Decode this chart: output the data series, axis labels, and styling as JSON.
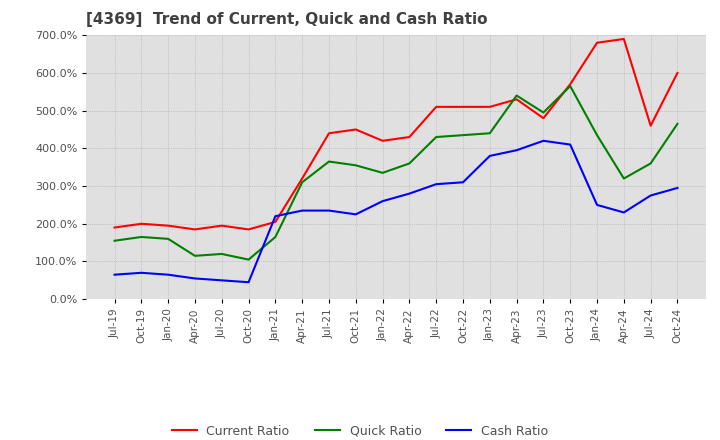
{
  "title": "[4369]  Trend of Current, Quick and Cash Ratio",
  "title_color": "#404040",
  "background_color": "#ffffff",
  "plot_background_color": "#e0e0e0",
  "grid_color": "#aaaaaa",
  "x_labels": [
    "Jul-19",
    "Oct-19",
    "Jan-20",
    "Apr-20",
    "Jul-20",
    "Oct-20",
    "Jan-21",
    "Apr-21",
    "Jul-21",
    "Oct-21",
    "Jan-22",
    "Apr-22",
    "Jul-22",
    "Oct-22",
    "Jan-23",
    "Apr-23",
    "Jul-23",
    "Oct-23",
    "Jan-24",
    "Apr-24",
    "Jul-24",
    "Oct-24"
  ],
  "current_ratio": [
    190,
    200,
    195,
    185,
    195,
    185,
    205,
    320,
    440,
    450,
    420,
    430,
    510,
    510,
    510,
    530,
    480,
    570,
    680,
    690,
    460,
    600
  ],
  "quick_ratio": [
    155,
    165,
    160,
    115,
    120,
    105,
    165,
    310,
    365,
    355,
    335,
    360,
    430,
    435,
    440,
    540,
    495,
    565,
    435,
    320,
    360,
    465
  ],
  "cash_ratio": [
    65,
    70,
    65,
    55,
    50,
    45,
    220,
    235,
    235,
    225,
    260,
    280,
    305,
    310,
    380,
    395,
    420,
    410,
    250,
    230,
    275,
    295
  ],
  "current_color": "#ff0000",
  "quick_color": "#008000",
  "cash_color": "#0000ff",
  "ylim": [
    0,
    700
  ],
  "yticks": [
    0,
    100,
    200,
    300,
    400,
    500,
    600,
    700
  ]
}
